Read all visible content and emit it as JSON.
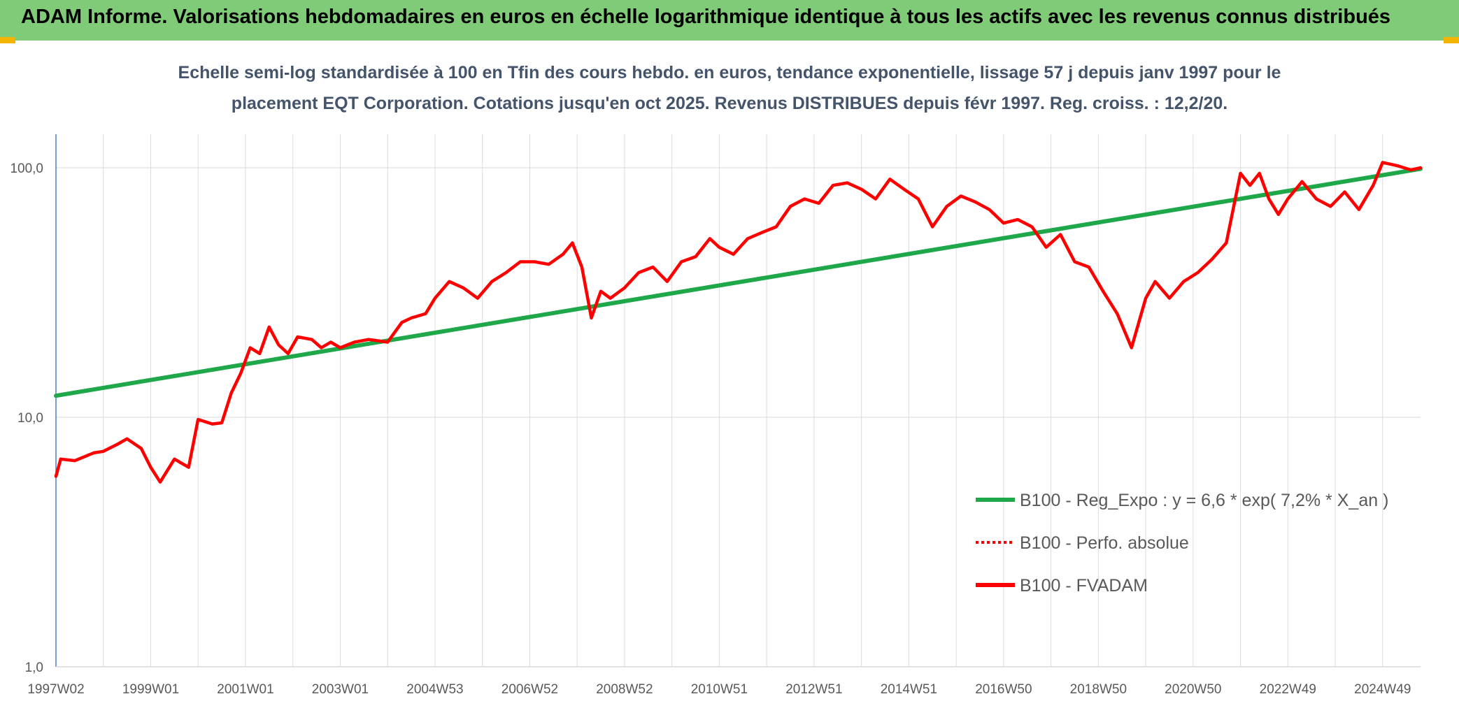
{
  "header": {
    "title": "ADAM Informe. Valorisations hebdomadaires en euros en échelle logarithmique identique à tous les actifs avec les revenus connus distribués"
  },
  "chart_data": {
    "type": "line",
    "subtitle_lines": [
      "Echelle semi-log standardisée à 100 en Tfin des cours hebdo. en euros, tendance exponentielle, lissage 57 j depuis janv 1997 pour le",
      "placement EQT Corporation. Cotations jusqu'en oct 2025. Revenus DISTRIBUES depuis févr 1997. Reg. croiss. : 12,2/20."
    ],
    "y_scale": "log",
    "ylim": [
      1,
      100
    ],
    "y_ticks": [
      "100,0",
      "10,0",
      "1,0"
    ],
    "xlim": [
      1997.0,
      2025.8
    ],
    "x_ticks": [
      {
        "x": 1997.0,
        "label": "1997W02"
      },
      {
        "x": 1999.0,
        "label": "1999W01"
      },
      {
        "x": 2001.0,
        "label": "2001W01"
      },
      {
        "x": 2003.0,
        "label": "2003W01"
      },
      {
        "x": 2005.0,
        "label": "2004W53"
      },
      {
        "x": 2007.0,
        "label": "2006W52"
      },
      {
        "x": 2009.0,
        "label": "2008W52"
      },
      {
        "x": 2011.0,
        "label": "2010W51"
      },
      {
        "x": 2013.0,
        "label": "2012W51"
      },
      {
        "x": 2015.0,
        "label": "2014W51"
      },
      {
        "x": 2017.0,
        "label": "2016W50"
      },
      {
        "x": 2019.0,
        "label": "2018W50"
      },
      {
        "x": 2021.0,
        "label": "2020W50"
      },
      {
        "x": 2023.0,
        "label": "2022W49"
      },
      {
        "x": 2025.0,
        "label": "2024W49"
      }
    ],
    "grid": true,
    "legend_position": "bottom-right",
    "series": [
      {
        "name": "B100 - Reg_Expo : y = 6,6 * exp( 7,2% *  X_an )",
        "color": "#1fa84a",
        "style": "solid",
        "x": [
          1997.0,
          2025.8
        ],
        "y": [
          12.2,
          99.0
        ]
      },
      {
        "name": "B100 - Perfo. absolue",
        "color": "#ff0000",
        "style": "dotted",
        "x": [],
        "y": []
      },
      {
        "name": "B100 - FVADAM",
        "color": "#ff0000",
        "style": "solid",
        "x": [
          1997.0,
          1997.1,
          1997.4,
          1997.8,
          1998.0,
          1998.3,
          1998.5,
          1998.8,
          1999.0,
          1999.2,
          1999.5,
          1999.8,
          2000.0,
          2000.3,
          2000.5,
          2000.7,
          2000.9,
          2001.1,
          2001.3,
          2001.5,
          2001.7,
          2001.9,
          2002.1,
          2002.4,
          2002.6,
          2002.8,
          2003.0,
          2003.3,
          2003.6,
          2004.0,
          2004.3,
          2004.5,
          2004.8,
          2005.0,
          2005.3,
          2005.6,
          2005.9,
          2006.2,
          2006.5,
          2006.8,
          2007.1,
          2007.4,
          2007.7,
          2007.9,
          2008.1,
          2008.3,
          2008.5,
          2008.7,
          2009.0,
          2009.3,
          2009.6,
          2009.9,
          2010.2,
          2010.5,
          2010.8,
          2011.0,
          2011.3,
          2011.6,
          2011.9,
          2012.2,
          2012.5,
          2012.8,
          2013.1,
          2013.4,
          2013.7,
          2014.0,
          2014.3,
          2014.6,
          2014.9,
          2015.2,
          2015.5,
          2015.8,
          2016.1,
          2016.4,
          2016.7,
          2017.0,
          2017.3,
          2017.6,
          2017.9,
          2018.2,
          2018.5,
          2018.8,
          2019.1,
          2019.4,
          2019.7,
          2020.0,
          2020.2,
          2020.5,
          2020.8,
          2021.1,
          2021.4,
          2021.7,
          2022.0,
          2022.2,
          2022.4,
          2022.6,
          2022.8,
          2023.0,
          2023.3,
          2023.6,
          2023.9,
          2024.2,
          2024.5,
          2024.8,
          2025.0,
          2025.3,
          2025.6,
          2025.8
        ],
        "y": [
          5.8,
          6.8,
          6.7,
          7.2,
          7.3,
          7.8,
          8.2,
          7.5,
          6.3,
          5.5,
          6.8,
          6.3,
          9.8,
          9.4,
          9.5,
          12.5,
          15.0,
          19.0,
          18.0,
          23.0,
          19.5,
          18.0,
          21.0,
          20.5,
          19.0,
          20.0,
          19.0,
          20.0,
          20.5,
          20.0,
          24.0,
          25.0,
          26.0,
          30.0,
          35.0,
          33.0,
          30.0,
          35.0,
          38.0,
          42.0,
          42.0,
          41.0,
          45.0,
          50.0,
          40.0,
          25.0,
          32.0,
          30.0,
          33.0,
          38.0,
          40.0,
          35.0,
          42.0,
          44.0,
          52.0,
          48.0,
          45.0,
          52.0,
          55.0,
          58.0,
          70.0,
          75.0,
          72.0,
          85.0,
          87.0,
          82.0,
          75.0,
          90.0,
          82.0,
          75.0,
          58.0,
          70.0,
          77.0,
          73.0,
          68.0,
          60.0,
          62.0,
          58.0,
          48.0,
          54.0,
          42.0,
          40.0,
          32.0,
          26.0,
          19.0,
          30.0,
          35.0,
          30.0,
          35.0,
          38.0,
          43.0,
          50.0,
          95.0,
          85.0,
          95.0,
          75.0,
          65.0,
          75.0,
          88.0,
          75.0,
          70.0,
          80.0,
          68.0,
          85.0,
          105.0,
          102.0,
          98.0,
          100.0
        ]
      }
    ]
  }
}
